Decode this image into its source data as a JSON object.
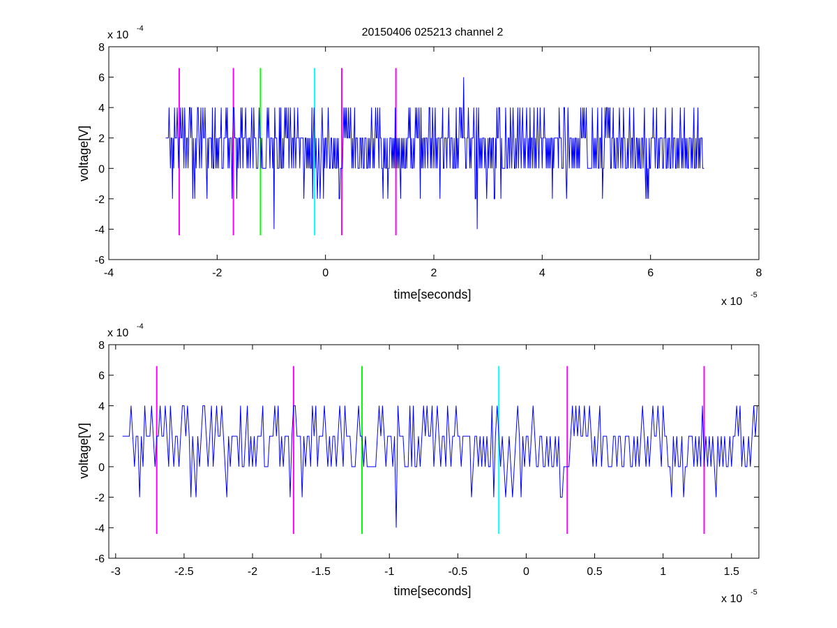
{
  "title": "20150406 025213 channel 2",
  "colors": {
    "signal": "#0000ff",
    "magenta": "#ff00ff",
    "green": "#00ff00",
    "cyan": "#00ffff",
    "axis": "#000000"
  },
  "chart_data": [
    {
      "type": "line",
      "title": "20150406 025213 channel 2",
      "xlabel": "time[seconds]",
      "ylabel": "voltage[V]",
      "x_exponent_label": {
        "base": "x 10",
        "exp": "-5"
      },
      "y_exponent_label": {
        "base": "x 10",
        "exp": "-4"
      },
      "xlim": [
        -4,
        8
      ],
      "ylim": [
        -6,
        8
      ],
      "x_scale_note": "x values in units of 1e-5 s",
      "y_scale_note": "y values in units of 1e-4 V",
      "xticks": [
        "-4",
        "-2",
        "0",
        "2",
        "4",
        "6",
        "8"
      ],
      "yticks": [
        "-6",
        "-4",
        "-2",
        "0",
        "2",
        "4",
        "6",
        "8"
      ],
      "grid": false,
      "series": [
        {
          "color": "#0000ff",
          "x_range": [
            -2.95,
            7.0
          ],
          "baseline_levels": [
            0,
            2
          ],
          "common_peaks": [
            4,
            -2
          ],
          "extremes": [
            {
              "x": 2.55,
              "y": 6
            },
            {
              "x": 2.8,
              "y": -4
            },
            {
              "x": -0.95,
              "y": -4
            }
          ]
        }
      ],
      "markers": [
        {
          "x": -2.7,
          "color": "magenta",
          "y_from": -4.4,
          "y_to": 6.6
        },
        {
          "x": -1.7,
          "color": "magenta",
          "y_from": -4.4,
          "y_to": 6.6
        },
        {
          "x": -1.2,
          "color": "green",
          "y_from": -4.4,
          "y_to": 6.6
        },
        {
          "x": -0.2,
          "color": "cyan",
          "y_from": -4.4,
          "y_to": 6.6
        },
        {
          "x": 0.3,
          "color": "magenta",
          "y_from": -4.4,
          "y_to": 6.6
        },
        {
          "x": 1.3,
          "color": "magenta",
          "y_from": -4.4,
          "y_to": 6.6
        }
      ]
    },
    {
      "type": "line",
      "title": "",
      "xlabel": "time[seconds]",
      "ylabel": "voltage[V]",
      "x_exponent_label": {
        "base": "x 10",
        "exp": "-5"
      },
      "y_exponent_label": {
        "base": "x 10",
        "exp": "-4"
      },
      "xlim": [
        -3.05,
        1.7
      ],
      "ylim": [
        -6,
        8
      ],
      "x_scale_note": "x values in units of 1e-5 s",
      "y_scale_note": "y values in units of 1e-4 V",
      "xticks": [
        "-3",
        "-2.5",
        "-2",
        "-1.5",
        "-1",
        "-0.5",
        "0",
        "0.5",
        "1",
        "1.5"
      ],
      "yticks": [
        "-6",
        "-4",
        "-2",
        "0",
        "2",
        "4",
        "6",
        "8"
      ],
      "grid": false,
      "series": [
        {
          "color": "#0000ff",
          "x_range": [
            -2.95,
            1.7
          ],
          "baseline_levels": [
            0,
            2
          ],
          "common_peaks": [
            4,
            -2
          ],
          "extremes": [
            {
              "x": -0.95,
              "y": -4
            }
          ]
        }
      ],
      "markers": [
        {
          "x": -2.7,
          "color": "magenta",
          "y_from": -4.4,
          "y_to": 6.6
        },
        {
          "x": -1.7,
          "color": "magenta",
          "y_from": -4.4,
          "y_to": 6.6
        },
        {
          "x": -1.2,
          "color": "green",
          "y_from": -4.4,
          "y_to": 6.6
        },
        {
          "x": -0.2,
          "color": "cyan",
          "y_from": -4.4,
          "y_to": 6.6
        },
        {
          "x": 0.3,
          "color": "magenta",
          "y_from": -4.4,
          "y_to": 6.6
        },
        {
          "x": 1.3,
          "color": "magenta",
          "y_from": -4.4,
          "y_to": 6.6
        }
      ]
    }
  ]
}
